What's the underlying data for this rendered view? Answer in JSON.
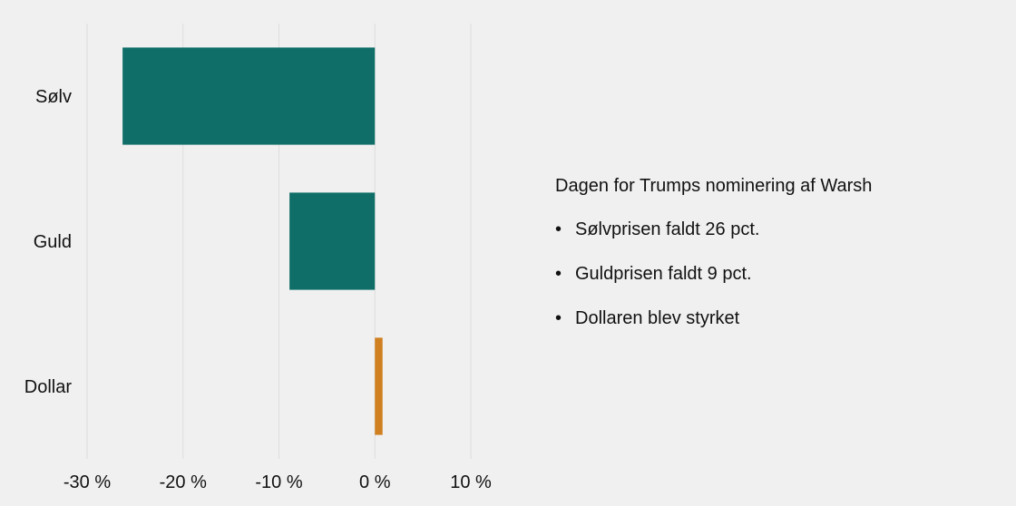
{
  "chart_data": {
    "type": "bar",
    "orientation": "horizontal",
    "categories": [
      "Sølv",
      "Guld",
      "Dollar"
    ],
    "values": [
      -26.3,
      -8.9,
      0.8
    ],
    "colors": [
      "#0f6e68",
      "#0f6e68",
      "#d08020"
    ],
    "xlim": [
      -30,
      10
    ],
    "xticks": [
      -30,
      -20,
      -10,
      0,
      10
    ],
    "xtick_labels": [
      "-30 %",
      "-20 %",
      "-10 %",
      "0 %",
      "10 %"
    ],
    "grid": "vertical",
    "grid_color": "#dddddd",
    "title": "",
    "xlabel": "",
    "ylabel": ""
  },
  "annotation": {
    "title": "Dagen for Trumps nominering af Warsh",
    "bullet": "•",
    "items": [
      "Sølvprisen faldt 26 pct.",
      "Guldprisen faldt 9 pct.",
      "Dollaren blev styrket"
    ]
  }
}
